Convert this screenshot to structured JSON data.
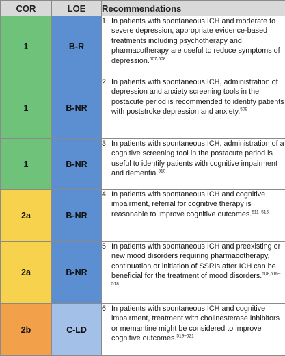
{
  "table": {
    "headers": {
      "cor": "COR",
      "loe": "LOE",
      "recommendations": "Recommendations"
    },
    "rows": [
      {
        "cor": "1",
        "loe": "B-R",
        "cor_color": "#6fc27a",
        "loe_color": "#5b8fd1",
        "number": "1.",
        "text": "In patients with spontaneous ICH and moderate to severe depression, appropriate evidence-based treatments including psychotherapy and pharmacotherapy are useful to reduce symptoms of depression.",
        "refs": "507,508"
      },
      {
        "cor": "1",
        "loe": "B-NR",
        "cor_color": "#6fc27a",
        "loe_color": "#5b8fd1",
        "number": "2.",
        "text": "In patients with spontaneous ICH, administration of depression and anxiety screening tools in the postacute period is recommended to identify patients with poststroke depression and anxiety.",
        "refs": "509"
      },
      {
        "cor": "1",
        "loe": "B-NR",
        "cor_color": "#6fc27a",
        "loe_color": "#5b8fd1",
        "number": "3.",
        "text": "In patients with spontaneous ICH, administration of a cognitive screening tool in the postacute period is useful to identify patients with cognitive impairment and dementia.",
        "refs": "510"
      },
      {
        "cor": "2a",
        "loe": "B-NR",
        "cor_color": "#f7d24c",
        "loe_color": "#5b8fd1",
        "number": "4.",
        "text": "In patients with spontaneous ICH and cognitive impairment, referral for cognitive therapy is reasonable to improve cognitive outcomes.",
        "refs": "511–515"
      },
      {
        "cor": "2a",
        "loe": "B-NR",
        "cor_color": "#f7d24c",
        "loe_color": "#5b8fd1",
        "number": "5.",
        "text": "In patients with spontaneous ICH and preexisting or new mood disorders requiring pharmacotherapy, continuation or initiation of SSRIs after ICH can be beneficial for the treatment of mood disorders.",
        "refs": "508,516–518"
      },
      {
        "cor": "2b",
        "loe": "C-LD",
        "cor_color": "#f2a04a",
        "loe_color": "#a3c1e8",
        "number": "6.",
        "text": "In patients with spontaneous ICH and cognitive impairment, treatment with cholinesterase inhibitors or memantine might be considered to improve cognitive outcomes.",
        "refs": "519–521"
      }
    ]
  }
}
